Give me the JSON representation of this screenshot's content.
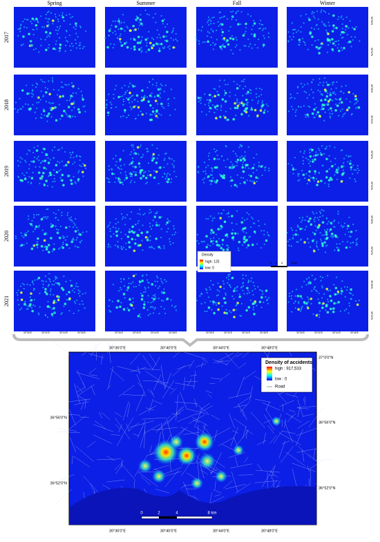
{
  "seasons": [
    "Spring",
    "Summer",
    "Fall",
    "Winter"
  ],
  "years": [
    "2017",
    "2018",
    "2019",
    "2020",
    "2021"
  ],
  "panel_x_labels": [
    "30°36'E",
    "30°40'E",
    "30°44'E",
    "30°48'E"
  ],
  "panel_y_labels": [
    "36°56'N",
    "36°52'N"
  ],
  "small_legend": {
    "title": "Density",
    "high": "high: 125",
    "low": "low: 0"
  },
  "small_scale": [
    "0",
    "2",
    "4",
    "8 km"
  ],
  "main_map": {
    "top_labels": [
      "30°36'0\"E",
      "30°40'0\"E",
      "30°44'0\"E",
      "30°48'0\"E"
    ],
    "bottom_labels": [
      "30°36'0\"E",
      "30°40'0\"E",
      "30°44'0\"E",
      "30°48'0\"E"
    ],
    "left_labels": [
      "36°56'0\"N",
      "36°52'0\"N"
    ],
    "right_labels": [
      "37°0'0\"N",
      "36°56'0\"N",
      "36°52'0\"N"
    ],
    "legend": {
      "title": "Density of accidents",
      "high": "high : 917,533",
      "low": "low : 0",
      "road": "Road"
    },
    "scale": [
      "0",
      "2",
      "4",
      "8 km"
    ]
  }
}
